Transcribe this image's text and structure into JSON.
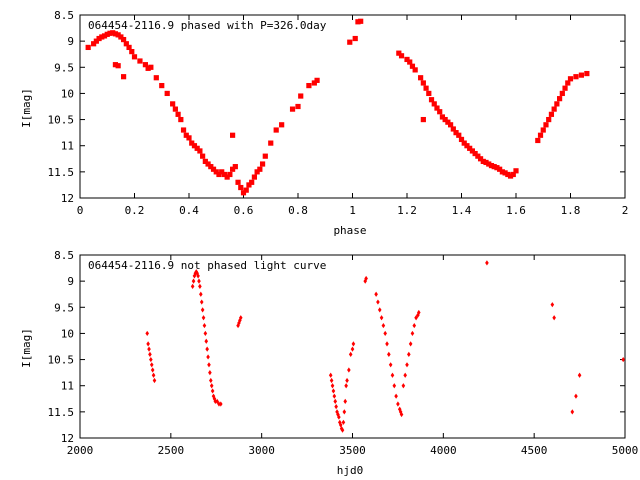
{
  "chart_data": [
    {
      "type": "scatter",
      "title": "064454-2116.9 phased with P=326.0day",
      "xlabel": "phase",
      "ylabel": "I[mag]",
      "xlim": [
        0,
        2
      ],
      "ylim": [
        12,
        8.5
      ],
      "y_inverted": true,
      "grid": false,
      "marker_color": "#ff0000",
      "marker_shape": "plus-square",
      "x_ticks": [
        0,
        0.2,
        0.4,
        0.6,
        0.8,
        1,
        1.2,
        1.4,
        1.6,
        1.8,
        2
      ],
      "x_tick_labels": [
        "0",
        "0.2",
        "0.4",
        "0.6",
        "0.8",
        "1",
        "1.2",
        "1.4",
        "1.6",
        "1.8",
        "2"
      ],
      "y_ticks": [
        8.5,
        9,
        9.5,
        10,
        10.5,
        11,
        11.5,
        12
      ],
      "y_tick_labels": [
        "8.5",
        "9",
        "9.5",
        "10",
        "10.5",
        "11",
        "11.5",
        "12"
      ],
      "points": [
        [
          0.03,
          9.12
        ],
        [
          0.05,
          9.05
        ],
        [
          0.06,
          9.0
        ],
        [
          0.07,
          8.95
        ],
        [
          0.08,
          8.92
        ],
        [
          0.09,
          8.9
        ],
        [
          0.1,
          8.87
        ],
        [
          0.11,
          8.85
        ],
        [
          0.12,
          8.84
        ],
        [
          0.13,
          8.86
        ],
        [
          0.14,
          8.88
        ],
        [
          0.15,
          8.92
        ],
        [
          0.16,
          8.97
        ],
        [
          0.17,
          9.05
        ],
        [
          0.18,
          9.12
        ],
        [
          0.19,
          9.2
        ],
        [
          0.13,
          9.45
        ],
        [
          0.14,
          9.47
        ],
        [
          0.16,
          9.68
        ],
        [
          0.2,
          9.3
        ],
        [
          0.22,
          9.38
        ],
        [
          0.24,
          9.45
        ],
        [
          0.25,
          9.52
        ],
        [
          0.26,
          9.5
        ],
        [
          0.28,
          9.7
        ],
        [
          0.3,
          9.85
        ],
        [
          0.32,
          10.0
        ],
        [
          0.34,
          10.2
        ],
        [
          0.35,
          10.3
        ],
        [
          0.36,
          10.4
        ],
        [
          0.37,
          10.5
        ],
        [
          0.38,
          10.7
        ],
        [
          0.39,
          10.8
        ],
        [
          0.4,
          10.85
        ],
        [
          0.41,
          10.95
        ],
        [
          0.42,
          11.0
        ],
        [
          0.43,
          11.05
        ],
        [
          0.44,
          11.1
        ],
        [
          0.45,
          11.2
        ],
        [
          0.46,
          11.3
        ],
        [
          0.47,
          11.35
        ],
        [
          0.48,
          11.4
        ],
        [
          0.49,
          11.45
        ],
        [
          0.5,
          11.5
        ],
        [
          0.51,
          11.55
        ],
        [
          0.52,
          11.5
        ],
        [
          0.53,
          11.55
        ],
        [
          0.54,
          11.6
        ],
        [
          0.55,
          11.55
        ],
        [
          0.56,
          11.45
        ],
        [
          0.57,
          11.4
        ],
        [
          0.58,
          11.7
        ],
        [
          0.59,
          11.8
        ],
        [
          0.6,
          11.9
        ],
        [
          0.61,
          11.85
        ],
        [
          0.62,
          11.75
        ],
        [
          0.63,
          11.7
        ],
        [
          0.64,
          11.6
        ],
        [
          0.65,
          11.5
        ],
        [
          0.66,
          11.45
        ],
        [
          0.67,
          11.35
        ],
        [
          0.68,
          11.2
        ],
        [
          0.7,
          10.95
        ],
        [
          0.72,
          10.7
        ],
        [
          0.74,
          10.6
        ],
        [
          0.78,
          10.3
        ],
        [
          0.8,
          10.25
        ],
        [
          0.81,
          10.05
        ],
        [
          0.84,
          9.85
        ],
        [
          0.86,
          9.8
        ],
        [
          0.87,
          9.75
        ],
        [
          0.56,
          10.8
        ],
        [
          0.99,
          9.02
        ],
        [
          1.01,
          8.95
        ],
        [
          1.02,
          8.63
        ],
        [
          1.03,
          8.62
        ],
        [
          1.17,
          9.23
        ],
        [
          1.18,
          9.28
        ],
        [
          1.2,
          9.35
        ],
        [
          1.21,
          9.4
        ],
        [
          1.22,
          9.48
        ],
        [
          1.23,
          9.55
        ],
        [
          1.25,
          9.7
        ],
        [
          1.26,
          9.8
        ],
        [
          1.27,
          9.9
        ],
        [
          1.28,
          10.0
        ],
        [
          1.29,
          10.12
        ],
        [
          1.3,
          10.2
        ],
        [
          1.31,
          10.28
        ],
        [
          1.26,
          10.5
        ],
        [
          1.32,
          10.35
        ],
        [
          1.33,
          10.45
        ],
        [
          1.34,
          10.5
        ],
        [
          1.35,
          10.55
        ],
        [
          1.36,
          10.6
        ],
        [
          1.37,
          10.68
        ],
        [
          1.38,
          10.75
        ],
        [
          1.39,
          10.8
        ],
        [
          1.4,
          10.88
        ],
        [
          1.41,
          10.95
        ],
        [
          1.42,
          11.0
        ],
        [
          1.43,
          11.05
        ],
        [
          1.44,
          11.1
        ],
        [
          1.45,
          11.15
        ],
        [
          1.46,
          11.2
        ],
        [
          1.47,
          11.25
        ],
        [
          1.48,
          11.3
        ],
        [
          1.49,
          11.32
        ],
        [
          1.5,
          11.35
        ],
        [
          1.51,
          11.38
        ],
        [
          1.52,
          11.4
        ],
        [
          1.53,
          11.42
        ],
        [
          1.54,
          11.45
        ],
        [
          1.55,
          11.5
        ],
        [
          1.56,
          11.52
        ],
        [
          1.57,
          11.55
        ],
        [
          1.58,
          11.58
        ],
        [
          1.59,
          11.55
        ],
        [
          1.6,
          11.48
        ],
        [
          1.68,
          10.9
        ],
        [
          1.69,
          10.8
        ],
        [
          1.7,
          10.7
        ],
        [
          1.71,
          10.6
        ],
        [
          1.72,
          10.5
        ],
        [
          1.73,
          10.4
        ],
        [
          1.74,
          10.3
        ],
        [
          1.75,
          10.2
        ],
        [
          1.76,
          10.1
        ],
        [
          1.77,
          10.0
        ],
        [
          1.78,
          9.9
        ],
        [
          1.79,
          9.8
        ],
        [
          1.8,
          9.72
        ],
        [
          1.82,
          9.68
        ],
        [
          1.84,
          9.65
        ],
        [
          1.86,
          9.62
        ]
      ]
    },
    {
      "type": "scatter",
      "title": "064454-2116.9 not phased light curve",
      "xlabel": "hjd0",
      "ylabel": "I[mag]",
      "xlim": [
        2000,
        5000
      ],
      "ylim": [
        12,
        8.5
      ],
      "y_inverted": true,
      "grid": false,
      "marker_color": "#ff0000",
      "marker_shape": "diamond",
      "x_ticks": [
        2000,
        2500,
        3000,
        3500,
        4000,
        4500,
        5000
      ],
      "x_tick_labels": [
        "2000",
        "2500",
        "3000",
        "3500",
        "4000",
        "4500",
        "5000"
      ],
      "y_ticks": [
        8.5,
        9,
        9.5,
        10,
        10.5,
        11,
        11.5,
        12
      ],
      "y_tick_labels": [
        "8.5",
        "9",
        "9.5",
        "10",
        "10.5",
        "11",
        "11.5",
        "12"
      ],
      "points": [
        [
          2370,
          10.0
        ],
        [
          2375,
          10.2
        ],
        [
          2380,
          10.3
        ],
        [
          2385,
          10.4
        ],
        [
          2390,
          10.5
        ],
        [
          2395,
          10.6
        ],
        [
          2400,
          10.7
        ],
        [
          2405,
          10.8
        ],
        [
          2410,
          10.9
        ],
        [
          2620,
          9.1
        ],
        [
          2625,
          9.0
        ],
        [
          2630,
          8.9
        ],
        [
          2635,
          8.85
        ],
        [
          2640,
          8.82
        ],
        [
          2645,
          8.85
        ],
        [
          2650,
          8.9
        ],
        [
          2655,
          9.0
        ],
        [
          2660,
          9.1
        ],
        [
          2665,
          9.25
        ],
        [
          2670,
          9.4
        ],
        [
          2675,
          9.55
        ],
        [
          2680,
          9.7
        ],
        [
          2685,
          9.85
        ],
        [
          2690,
          10.0
        ],
        [
          2695,
          10.15
        ],
        [
          2700,
          10.3
        ],
        [
          2705,
          10.45
        ],
        [
          2710,
          10.6
        ],
        [
          2715,
          10.75
        ],
        [
          2720,
          10.9
        ],
        [
          2725,
          11.0
        ],
        [
          2730,
          11.1
        ],
        [
          2735,
          11.2
        ],
        [
          2740,
          11.25
        ],
        [
          2745,
          11.3
        ],
        [
          2755,
          11.3
        ],
        [
          2765,
          11.35
        ],
        [
          2775,
          11.35
        ],
        [
          2870,
          9.85
        ],
        [
          2875,
          9.8
        ],
        [
          2880,
          9.75
        ],
        [
          2885,
          9.7
        ],
        [
          3380,
          10.8
        ],
        [
          3385,
          10.9
        ],
        [
          3390,
          11.0
        ],
        [
          3395,
          11.1
        ],
        [
          3400,
          11.2
        ],
        [
          3405,
          11.3
        ],
        [
          3410,
          11.4
        ],
        [
          3415,
          11.5
        ],
        [
          3420,
          11.55
        ],
        [
          3425,
          11.6
        ],
        [
          3430,
          11.7
        ],
        [
          3435,
          11.75
        ],
        [
          3440,
          11.82
        ],
        [
          3445,
          11.85
        ],
        [
          3450,
          11.7
        ],
        [
          3455,
          11.5
        ],
        [
          3460,
          11.3
        ],
        [
          3465,
          11.0
        ],
        [
          3470,
          10.9
        ],
        [
          3480,
          10.7
        ],
        [
          3490,
          10.4
        ],
        [
          3500,
          10.3
        ],
        [
          3505,
          10.2
        ],
        [
          3570,
          9.0
        ],
        [
          3575,
          8.95
        ],
        [
          3630,
          9.25
        ],
        [
          3640,
          9.4
        ],
        [
          3650,
          9.55
        ],
        [
          3660,
          9.7
        ],
        [
          3670,
          9.85
        ],
        [
          3680,
          10.0
        ],
        [
          3690,
          10.2
        ],
        [
          3700,
          10.4
        ],
        [
          3710,
          10.6
        ],
        [
          3720,
          10.8
        ],
        [
          3730,
          11.0
        ],
        [
          3740,
          11.2
        ],
        [
          3750,
          11.35
        ],
        [
          3760,
          11.45
        ],
        [
          3765,
          11.5
        ],
        [
          3770,
          11.55
        ],
        [
          3780,
          11.0
        ],
        [
          3790,
          10.8
        ],
        [
          3800,
          10.6
        ],
        [
          3810,
          10.4
        ],
        [
          3820,
          10.2
        ],
        [
          3830,
          10.0
        ],
        [
          3840,
          9.85
        ],
        [
          3850,
          9.7
        ],
        [
          3860,
          9.65
        ],
        [
          3865,
          9.6
        ],
        [
          4240,
          8.65
        ],
        [
          4600,
          9.45
        ],
        [
          4610,
          9.7
        ],
        [
          4710,
          11.5
        ],
        [
          4730,
          11.2
        ],
        [
          4750,
          10.8
        ],
        [
          4990,
          10.5
        ]
      ]
    }
  ]
}
